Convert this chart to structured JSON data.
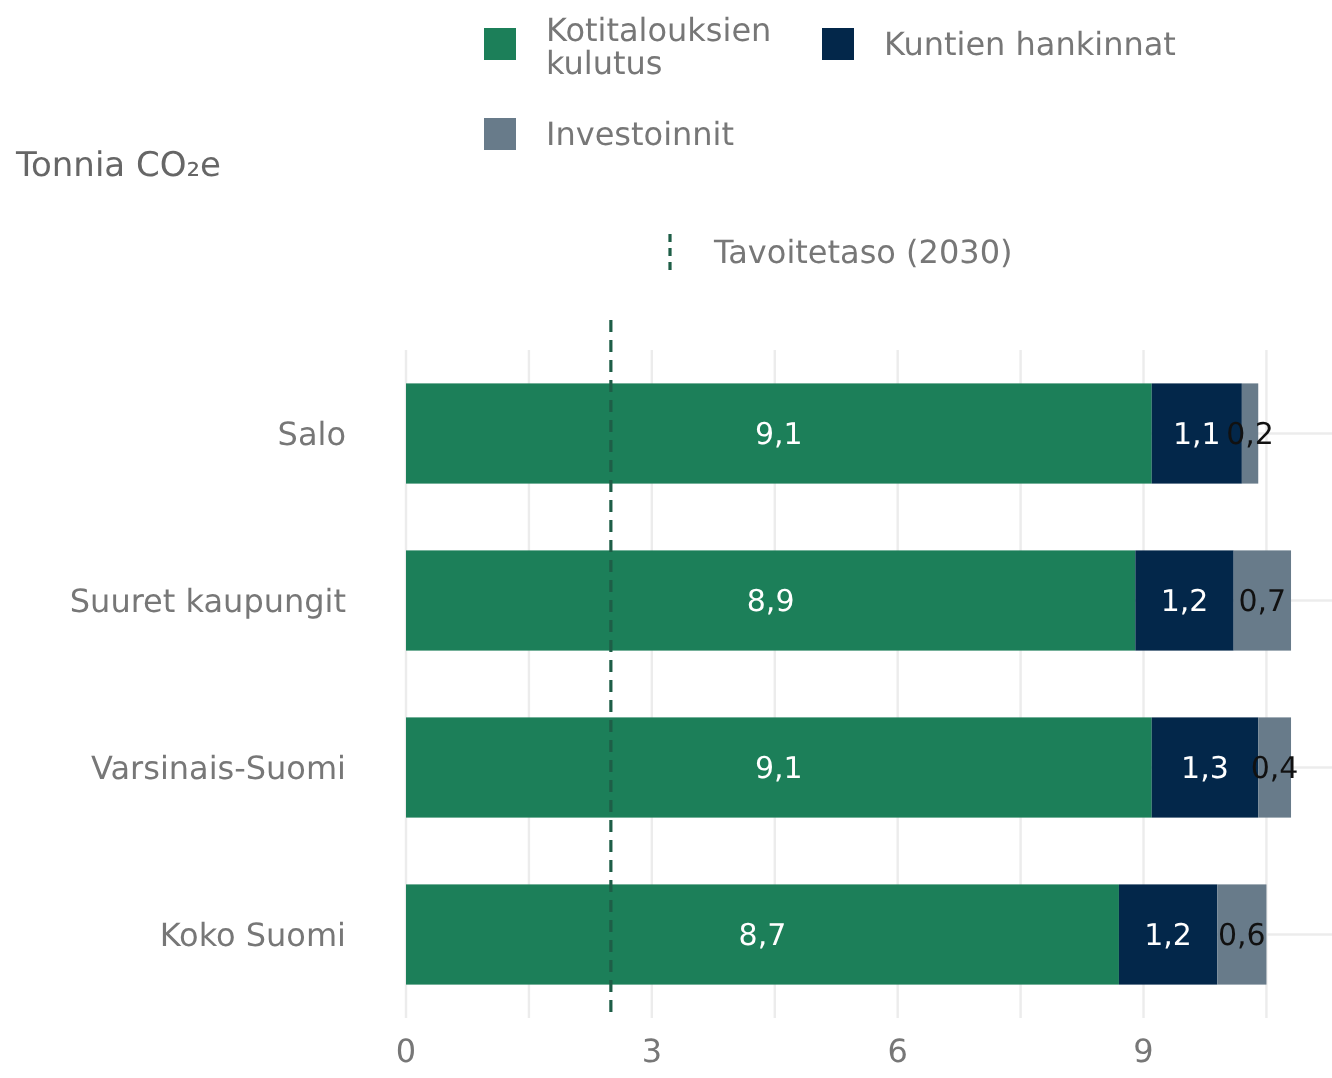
{
  "chart_data": {
    "type": "bar",
    "orientation": "horizontal",
    "stacked": true,
    "ylabel": "Tonnia CO₂e",
    "categories": [
      "Salo",
      "Suuret kaupungit",
      "Varsinais-Suomi",
      "Koko Suomi"
    ],
    "series": [
      {
        "name": "Kotitalouksien kulutus",
        "color": "#1c7f59",
        "values": [
          9.1,
          8.9,
          9.1,
          8.7
        ],
        "value_labels": [
          "9,1",
          "8,9",
          "9,1",
          "8,7"
        ]
      },
      {
        "name": "Kuntien hankinnat",
        "color": "#03274a",
        "values": [
          1.1,
          1.2,
          1.3,
          1.2
        ],
        "value_labels": [
          "1,1",
          "1,2",
          "1,3",
          "1,2"
        ]
      },
      {
        "name": "Investoinnit",
        "color": "#687b8a",
        "values": [
          0.2,
          0.7,
          0.4,
          0.6
        ],
        "value_labels": [
          "0,2",
          "0,7",
          "0,4",
          "0,6"
        ]
      }
    ],
    "xlim": [
      0,
      11.3
    ],
    "xticks": [
      0,
      {
        "value": 1.5,
        "label": null
      },
      3,
      {
        "value": 4.5,
        "label": null
      },
      6,
      {
        "value": 7.5,
        "label": null
      },
      9,
      {
        "value": 10.5,
        "label": null
      }
    ],
    "ref_lines": [
      {
        "axis": "x",
        "value": 2.5,
        "label": "Tavoitetaso (2030)",
        "color": "#1e5e47",
        "line_style": "dashed"
      }
    ],
    "grid": true,
    "legend": "top"
  }
}
